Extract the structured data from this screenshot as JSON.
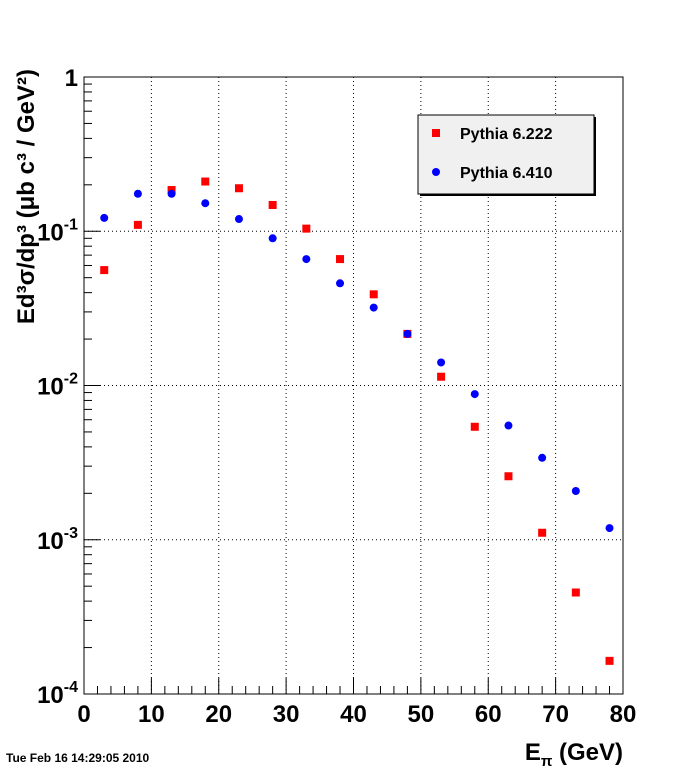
{
  "timestamp": "Tue Feb 16 14:29:05 2010",
  "chart_data": {
    "type": "scatter",
    "title": "",
    "xlabel": "E",
    "xlabel_sub": "π",
    "xlabel_unit": " (GeV)",
    "ylabel": "Ed³σ/dp³ (μb c³ / GeV²)",
    "xlim": [
      0,
      80
    ],
    "ylim": [
      0.0001,
      1
    ],
    "y_scale": "log",
    "grid": true,
    "legend_position": "top-right",
    "x_ticks": [
      0,
      10,
      20,
      30,
      40,
      50,
      60,
      70,
      80
    ],
    "y_ticks": [
      {
        "value": 1,
        "label": "1"
      },
      {
        "value": 0.1,
        "label_base": "10",
        "label_exp": "-1"
      },
      {
        "value": 0.01,
        "label_base": "10",
        "label_exp": "-2"
      },
      {
        "value": 0.001,
        "label_base": "10",
        "label_exp": "-3"
      },
      {
        "value": 0.0001,
        "label_base": "10",
        "label_exp": "-4"
      }
    ],
    "series": [
      {
        "name": "Pythia 6.222",
        "color": "#ff0000",
        "marker": "square",
        "x": [
          3,
          8,
          13,
          18,
          23,
          28,
          33,
          38,
          43,
          48,
          53,
          58,
          63,
          68,
          73,
          78
        ],
        "y": [
          0.056,
          0.11,
          0.185,
          0.21,
          0.19,
          0.148,
          0.104,
          0.066,
          0.039,
          0.0216,
          0.0114,
          0.0054,
          0.00258,
          0.00111,
          0.000455,
          0.000164
        ]
      },
      {
        "name": "Pythia 6.410",
        "color": "#0000ff",
        "marker": "circle",
        "x": [
          3,
          8,
          13,
          18,
          23,
          28,
          33,
          38,
          43,
          48,
          53,
          58,
          63,
          68,
          73,
          78
        ],
        "y": [
          0.122,
          0.175,
          0.175,
          0.152,
          0.12,
          0.09,
          0.066,
          0.046,
          0.032,
          0.0216,
          0.0141,
          0.0088,
          0.0055,
          0.0034,
          0.00207,
          0.00119
        ]
      }
    ]
  }
}
